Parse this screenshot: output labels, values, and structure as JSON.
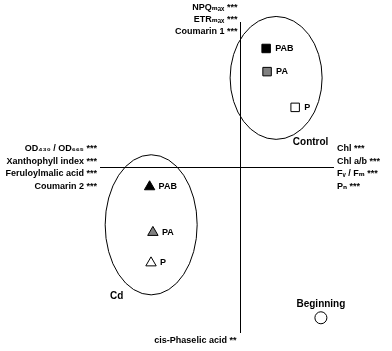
{
  "chart_data": {
    "type": "scatter",
    "xlim": [
      -3,
      2
    ],
    "ylim": [
      -2.5,
      2.2
    ],
    "xticks": [
      0
    ],
    "yticks": [
      0
    ],
    "tick_labels": false,
    "axis_labels": {
      "top": [
        "NPQₘₐₓ ***",
        "ETRₘₐₓ ***",
        "Coumarin 1 ***"
      ],
      "left": [
        "OD₄₃₀ / OD₆₆₅ ***",
        "Xanthophyll index ***",
        "Feruloylmalic acid ***",
        "Coumarin 2 ***"
      ],
      "right": [
        "Chl ***",
        "Chl a/b ***",
        "Fᵥ / Fₘ ***",
        "Pₙ ***"
      ],
      "bottom": [
        "cis-Phaselic acid **"
      ]
    },
    "series": [
      {
        "name": "Control",
        "marker": "square",
        "x": [
          0.55,
          0.57,
          1.17
        ],
        "values": [
          1.8,
          1.45,
          0.91
        ],
        "labels": [
          "PAB",
          "PA",
          "P"
        ],
        "colors": [
          "#000000",
          "#808080",
          "#ffffff"
        ]
      },
      {
        "name": "Cd",
        "marker": "triangle",
        "x": [
          -1.94,
          -1.87,
          -1.91
        ],
        "values": [
          -0.29,
          -0.98,
          -1.44
        ],
        "labels": [
          "PAB",
          "PA",
          "P"
        ],
        "colors": [
          "#000000",
          "#808080",
          "#ffffff"
        ]
      },
      {
        "name": "Beginning",
        "marker": "circle",
        "x": [
          1.72
        ],
        "values": [
          -2.27
        ],
        "colors": [
          "#ffffff"
        ]
      }
    ]
  }
}
